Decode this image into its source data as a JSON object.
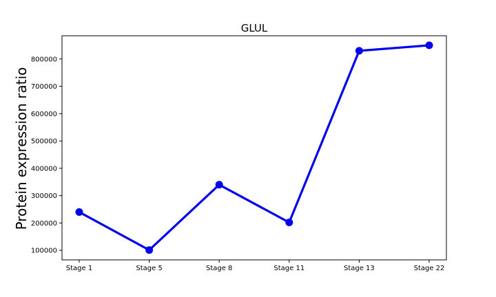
{
  "chart_data": {
    "type": "line",
    "title": "GLUL",
    "xlabel": "",
    "ylabel": "Protein expression ratio",
    "categories": [
      "Stage 1",
      "Stage 5",
      "Stage 8",
      "Stage 11",
      "Stage 13",
      "Stage 22"
    ],
    "series": [
      {
        "values": [
          240000,
          101000,
          340000,
          202000,
          830000,
          850000
        ],
        "color": "#0000ee"
      }
    ],
    "yticks": [
      100000,
      200000,
      300000,
      400000,
      500000,
      600000,
      700000,
      800000
    ],
    "ytick_labels": [
      "100000",
      "200000",
      "300000",
      "400000",
      "500000",
      "600000",
      "700000",
      "800000"
    ],
    "ylim": [
      65000,
      885000
    ],
    "grid": false,
    "legend": "none"
  }
}
